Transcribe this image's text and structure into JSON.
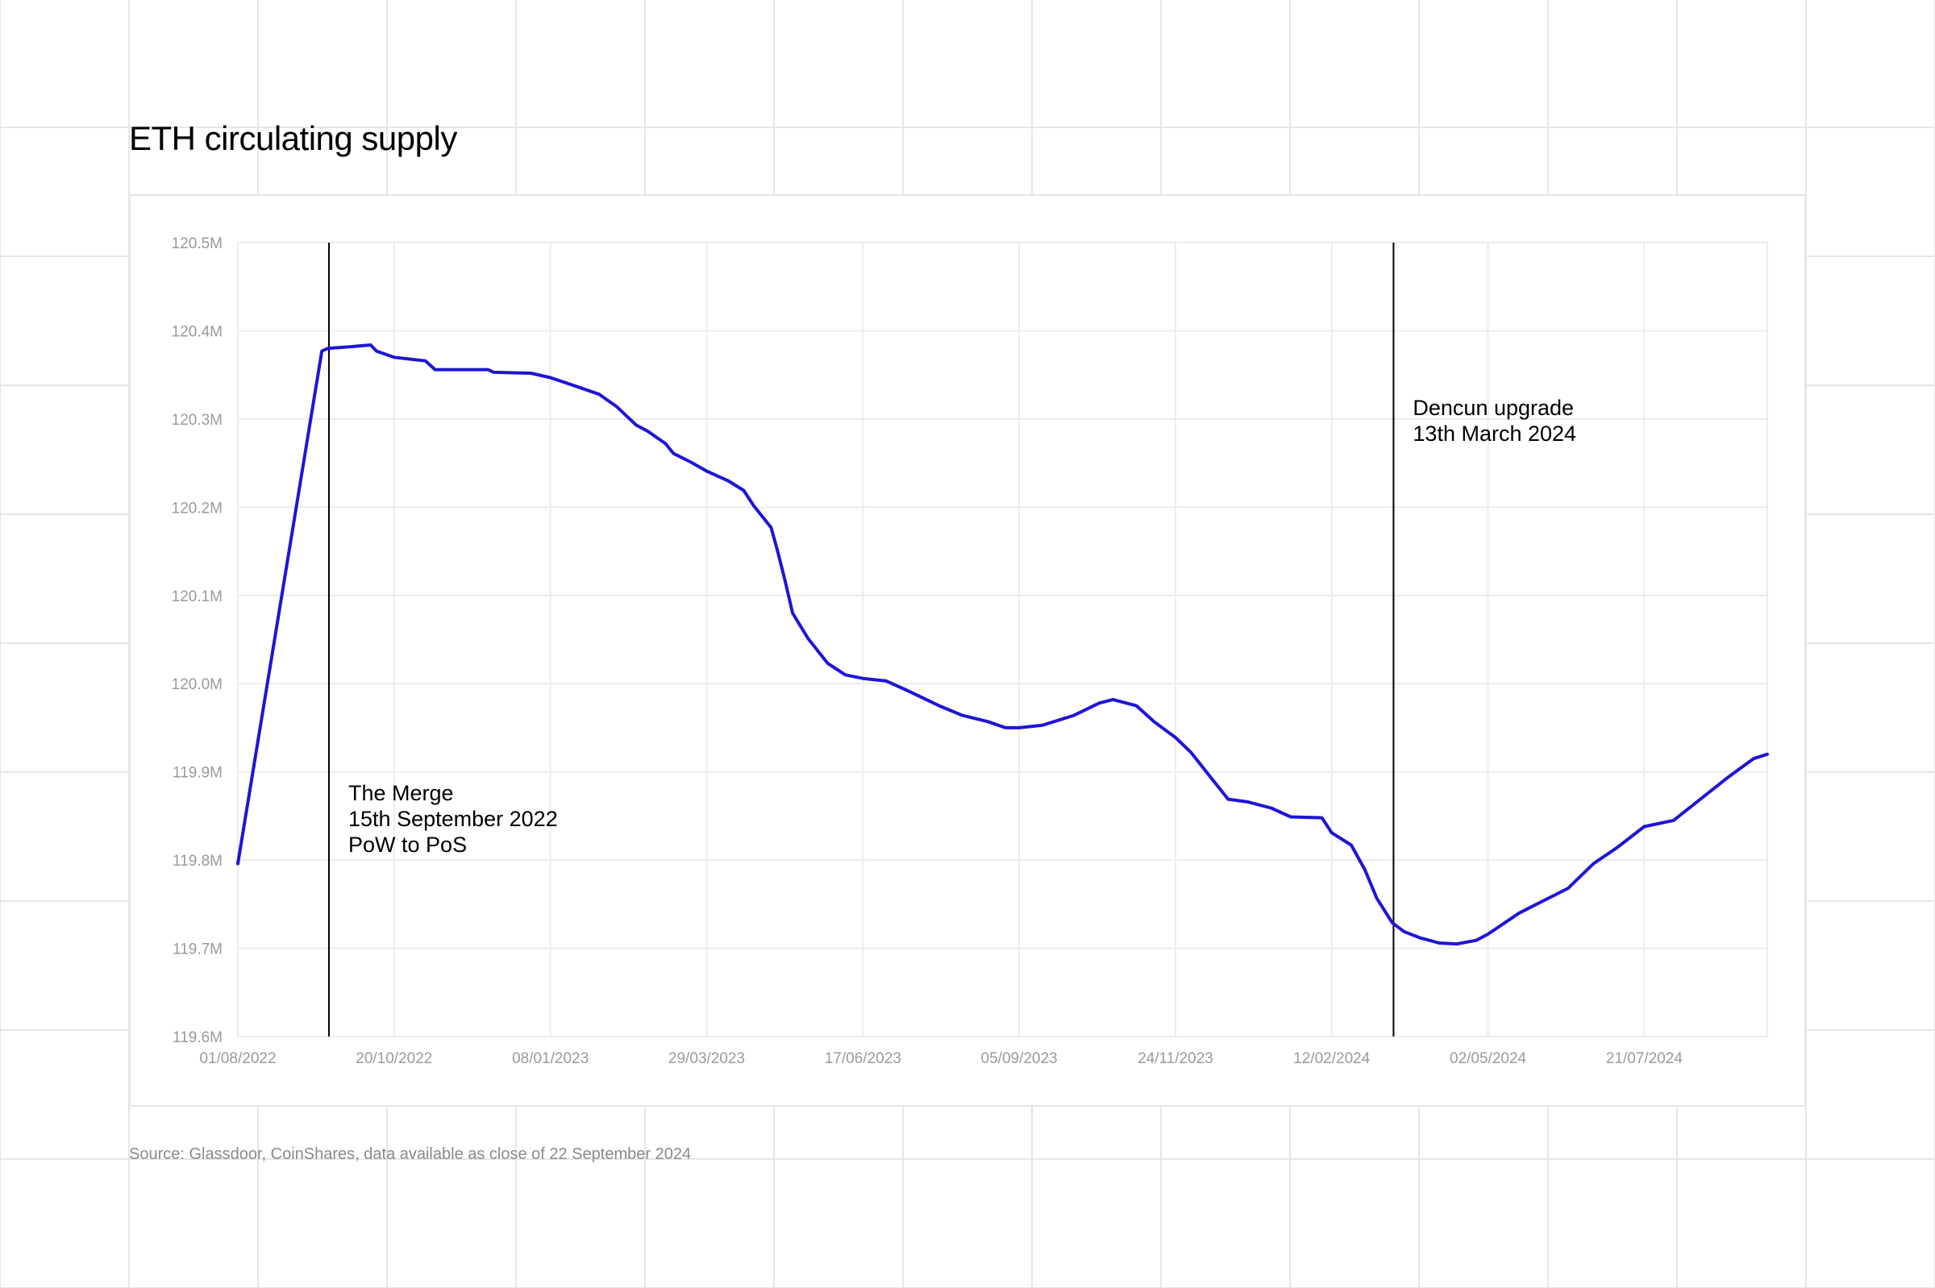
{
  "title": "ETH circulating supply",
  "source": "Source: Glassdoor, CoinShares, data available as close of 22 September 2024",
  "chart_data": {
    "type": "line",
    "title": "ETH circulating supply",
    "xlabel": "",
    "ylabel": "",
    "xlim": [
      "2022-08-01",
      "2024-09-22"
    ],
    "ylim": [
      119.6,
      120.5
    ],
    "y_unit": "M",
    "grid": true,
    "line_color": "#1f14d6",
    "x_ticks": [
      "01/08/2022",
      "20/10/2022",
      "08/01/2023",
      "29/03/2023",
      "17/06/2023",
      "05/09/2023",
      "24/11/2023",
      "12/02/2024",
      "02/05/2024",
      "21/07/2024"
    ],
    "y_ticks": [
      "119.6M",
      "119.7M",
      "119.8M",
      "119.9M",
      "120.0M",
      "120.1M",
      "120.2M",
      "120.3M",
      "120.4M",
      "120.5M"
    ],
    "annotations": [
      {
        "date": "2022-09-15",
        "lines": [
          "The Merge",
          "15th September 2022",
          "PoW to PoS"
        ]
      },
      {
        "date": "2024-03-13",
        "lines": [
          "Dencun upgrade",
          "13th March 2024"
        ]
      }
    ],
    "points": [
      [
        "2022-08-01",
        119.796
      ],
      [
        "2022-09-13",
        120.377
      ],
      [
        "2022-09-16",
        120.38
      ],
      [
        "2022-09-28",
        120.382
      ],
      [
        "2022-10-08",
        120.384
      ],
      [
        "2022-10-11",
        120.377
      ],
      [
        "2022-10-20",
        120.37
      ],
      [
        "2022-11-05",
        120.366
      ],
      [
        "2022-11-10",
        120.356
      ],
      [
        "2022-12-07",
        120.356
      ],
      [
        "2022-12-10",
        120.353
      ],
      [
        "2022-12-29",
        120.352
      ],
      [
        "2023-01-08",
        120.347
      ],
      [
        "2023-01-20",
        120.338
      ],
      [
        "2023-02-02",
        120.328
      ],
      [
        "2023-02-11",
        120.314
      ],
      [
        "2023-02-21",
        120.293
      ],
      [
        "2023-02-27",
        120.286
      ],
      [
        "2023-03-08",
        120.272
      ],
      [
        "2023-03-12",
        120.261
      ],
      [
        "2023-03-21",
        120.251
      ],
      [
        "2023-03-29",
        120.241
      ],
      [
        "2023-04-09",
        120.23
      ],
      [
        "2023-04-17",
        120.219
      ],
      [
        "2023-04-22",
        120.202
      ],
      [
        "2023-05-01",
        120.177
      ],
      [
        "2023-05-04",
        120.153
      ],
      [
        "2023-05-08",
        120.118
      ],
      [
        "2023-05-12",
        120.08
      ],
      [
        "2023-05-20",
        120.051
      ],
      [
        "2023-05-30",
        120.023
      ],
      [
        "2023-06-08",
        120.01
      ],
      [
        "2023-06-17",
        120.006
      ],
      [
        "2023-06-29",
        120.003
      ],
      [
        "2023-07-10",
        119.992
      ],
      [
        "2023-07-26",
        119.975
      ],
      [
        "2023-08-07",
        119.964
      ],
      [
        "2023-08-20",
        119.957
      ],
      [
        "2023-08-29",
        119.95
      ],
      [
        "2023-09-05",
        119.95
      ],
      [
        "2023-09-17",
        119.953
      ],
      [
        "2023-10-03",
        119.964
      ],
      [
        "2023-10-16",
        119.978
      ],
      [
        "2023-10-23",
        119.982
      ],
      [
        "2023-11-04",
        119.975
      ],
      [
        "2023-11-13",
        119.957
      ],
      [
        "2023-11-24",
        119.939
      ],
      [
        "2023-12-02",
        119.922
      ],
      [
        "2023-12-12",
        119.894
      ],
      [
        "2023-12-21",
        119.869
      ],
      [
        "2023-12-31",
        119.866
      ],
      [
        "2024-01-12",
        119.859
      ],
      [
        "2024-01-22",
        119.849
      ],
      [
        "2024-02-07",
        119.848
      ],
      [
        "2024-02-12",
        119.831
      ],
      [
        "2024-02-22",
        119.817
      ],
      [
        "2024-02-29",
        119.789
      ],
      [
        "2024-03-06",
        119.757
      ],
      [
        "2024-03-14",
        119.729
      ],
      [
        "2024-03-20",
        119.719
      ],
      [
        "2024-03-28",
        119.712
      ],
      [
        "2024-04-07",
        119.706
      ],
      [
        "2024-04-16",
        119.705
      ],
      [
        "2024-04-26",
        119.709
      ],
      [
        "2024-05-02",
        119.716
      ],
      [
        "2024-05-18",
        119.74
      ],
      [
        "2024-06-03",
        119.758
      ],
      [
        "2024-06-12",
        119.768
      ],
      [
        "2024-06-25",
        119.796
      ],
      [
        "2024-07-07",
        119.814
      ],
      [
        "2024-07-21",
        119.838
      ],
      [
        "2024-08-05",
        119.845
      ],
      [
        "2024-08-21",
        119.873
      ],
      [
        "2024-09-02",
        119.894
      ],
      [
        "2024-09-15",
        119.915
      ],
      [
        "2024-09-22",
        119.92
      ]
    ]
  }
}
